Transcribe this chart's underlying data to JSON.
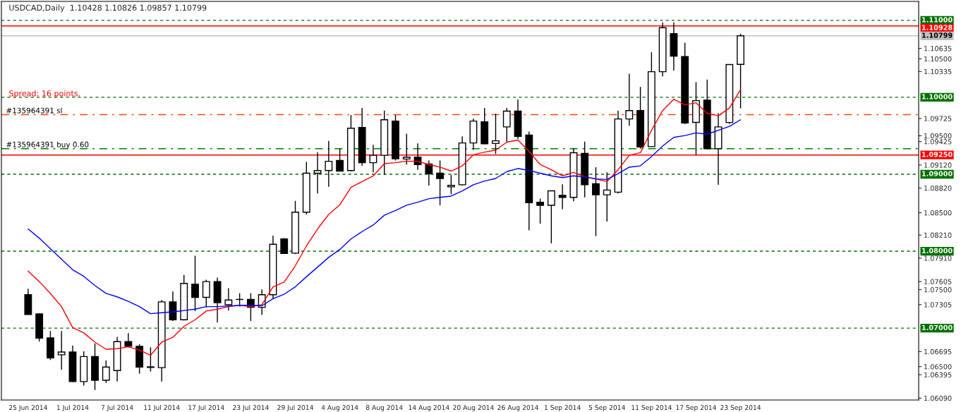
{
  "chart_data": {
    "type": "candlestick",
    "title": "USDCAD,Daily  1.10428 1.10826 1.09857 1.10799",
    "annotations": [
      "Spread: 16 points."
    ],
    "categories": [
      "25 Jun 2014",
      null,
      null,
      null,
      "1 Jul 2014",
      null,
      null,
      null,
      "7 Jul 2014",
      null,
      null,
      null,
      "11 Jul 2014",
      null,
      null,
      null,
      "17 Jul 2014",
      null,
      null,
      null,
      "23 Jul 2014",
      null,
      null,
      null,
      "29 Jul 2014",
      null,
      null,
      null,
      "4 Aug 2014",
      null,
      null,
      null,
      "8 Aug 2014",
      null,
      null,
      null,
      "14 Aug 2014",
      null,
      null,
      null,
      "20 Aug 2014",
      null,
      null,
      null,
      "26 Aug 2014",
      null,
      null,
      null,
      "1 Sep 2014",
      null,
      null,
      null,
      "5 Sep 2014",
      null,
      null,
      null,
      "11 Sep 2014",
      null,
      null,
      null,
      "17 Sep 2014",
      null,
      null,
      null,
      "23 Sep 2014"
    ],
    "ohlc": [
      [
        1.07434,
        1.07513,
        1.07178,
        1.07178
      ],
      [
        1.07184,
        1.07194,
        1.06825,
        1.06869
      ],
      [
        1.06873,
        1.06962,
        1.06586,
        1.06614
      ],
      [
        1.06654,
        1.06962,
        1.0646,
        1.06689
      ],
      [
        1.06689,
        1.06774,
        1.06299,
        1.06306
      ],
      [
        1.06306,
        1.06699,
        1.06255,
        1.06631
      ],
      [
        1.06631,
        1.06801,
        1.06196,
        1.06323
      ],
      [
        1.06323,
        1.06579,
        1.06289,
        1.06494
      ],
      [
        1.06449,
        1.06887,
        1.06306,
        1.06825
      ],
      [
        1.06825,
        1.06935,
        1.0675,
        1.06764
      ],
      [
        1.06764,
        1.06791,
        1.06408,
        1.06494
      ],
      [
        1.06497,
        1.0675,
        1.06436,
        1.0649
      ],
      [
        1.06487,
        1.07366,
        1.06306,
        1.07342
      ],
      [
        1.07342,
        1.07475,
        1.07092,
        1.07109
      ],
      [
        1.07109,
        1.07691,
        1.07099,
        1.07581
      ],
      [
        1.07571,
        1.0794,
        1.07222,
        1.074
      ],
      [
        1.074,
        1.07629,
        1.0727,
        1.07605
      ],
      [
        1.07605,
        1.07656,
        1.07075,
        1.07331
      ],
      [
        1.07304,
        1.07519,
        1.07229,
        1.07366
      ],
      [
        1.07373,
        1.07454,
        1.0728,
        1.07373
      ],
      [
        1.07373,
        1.07454,
        1.07092,
        1.0727
      ],
      [
        1.0727,
        1.07502,
        1.07174,
        1.07434
      ],
      [
        1.07434,
        1.08203,
        1.07383,
        1.0809
      ],
      [
        1.08159,
        1.08169,
        1.07964,
        1.07971
      ],
      [
        1.07974,
        1.08654,
        1.07964,
        1.08507
      ],
      [
        1.08507,
        1.09161,
        1.08477,
        1.09014
      ],
      [
        1.09014,
        1.09287,
        1.0875,
        1.09048
      ],
      [
        1.09048,
        1.09434,
        1.08836,
        1.09168
      ],
      [
        1.09178,
        1.09332,
        1.09041,
        1.09041
      ],
      [
        1.09048,
        1.09769,
        1.09041,
        1.09598
      ],
      [
        1.09608,
        1.09861,
        1.09109,
        1.0915
      ],
      [
        1.0915,
        1.09383,
        1.09024,
        1.09246
      ],
      [
        1.09246,
        1.09827,
        1.08992,
        1.09708
      ],
      [
        1.09691,
        1.09769,
        1.09178,
        1.09202
      ],
      [
        1.09198,
        1.09526,
        1.09126,
        1.09222
      ],
      [
        1.09222,
        1.094,
        1.09058,
        1.09126
      ],
      [
        1.09133,
        1.09178,
        1.08853,
        1.09007
      ],
      [
        1.09014,
        1.09178,
        1.08597,
        1.08945
      ],
      [
        1.08836,
        1.0899,
        1.0874,
        1.08856
      ],
      [
        1.08863,
        1.09492,
        1.08853,
        1.09407
      ],
      [
        1.09407,
        1.09725,
        1.09315,
        1.09691
      ],
      [
        1.0968,
        1.09861,
        1.09389,
        1.09396
      ],
      [
        1.094,
        1.09786,
        1.09263,
        1.09434
      ],
      [
        1.09615,
        1.09861,
        1.09417,
        1.0982
      ],
      [
        1.0982,
        1.09971,
        1.09458,
        1.09492
      ],
      [
        1.09509,
        1.09554,
        1.08272,
        1.08631
      ],
      [
        1.08637,
        1.08682,
        1.08357,
        1.08596
      ],
      [
        1.08596,
        1.08784,
        1.08101,
        1.08784
      ],
      [
        1.08726,
        1.0887,
        1.08545,
        1.08699
      ],
      [
        1.08699,
        1.09342,
        1.08648,
        1.0928
      ],
      [
        1.0927,
        1.09424,
        1.08699,
        1.08863
      ],
      [
        1.08877,
        1.09092,
        1.08196,
        1.08733
      ],
      [
        1.08733,
        1.09024,
        1.08385,
        1.08795
      ],
      [
        1.08767,
        1.09827,
        1.0875,
        1.09718
      ],
      [
        1.09718,
        1.10306,
        1.09629,
        1.09827
      ],
      [
        1.09827,
        1.10135,
        1.09332,
        1.09355
      ],
      [
        1.09359,
        1.10586,
        1.09359,
        1.10333
      ],
      [
        1.10333,
        1.10973,
        1.10272,
        1.10904
      ],
      [
        1.10826,
        1.10973,
        1.10347,
        1.10535
      ],
      [
        1.10528,
        1.10709,
        1.0965,
        1.09667
      ],
      [
        1.09674,
        1.10197,
        1.09253,
        1.09957
      ],
      [
        1.09964,
        1.10231,
        1.09321,
        1.09332
      ],
      [
        1.09332,
        1.09793,
        1.08863,
        1.09615
      ],
      [
        1.09673,
        1.10426,
        1.09656,
        1.10426
      ],
      [
        1.10428,
        1.10826,
        1.09857,
        1.10799
      ]
    ],
    "series": [
      {
        "type": "line",
        "color": "#ff0000",
        "values": [
          1.07742,
          1.07605,
          1.07451,
          1.0728,
          1.07007,
          1.06938,
          1.06818,
          1.06726,
          1.06733,
          1.06757,
          1.06716,
          1.06648,
          1.06818,
          1.0688,
          1.07024,
          1.07109,
          1.07222,
          1.07246,
          1.0728,
          1.07297,
          1.0728,
          1.07304,
          1.07537,
          1.07598,
          1.0781,
          1.08067,
          1.08289,
          1.08477,
          1.08603,
          1.08829,
          1.08904,
          1.08979,
          1.09137,
          1.0915,
          1.09171,
          1.09168,
          1.09126,
          1.09092,
          1.09041,
          1.09109,
          1.09253,
          1.09287,
          1.09314,
          1.09417,
          1.09444,
          1.09297,
          1.09126,
          1.09058,
          1.08979,
          1.09024,
          1.08966,
          1.08939,
          1.08904,
          1.09058,
          1.09246,
          1.0928,
          1.09571,
          1.09827,
          1.09974,
          1.09902,
          1.09929,
          1.09793,
          1.09759,
          1.09861,
          1.10101
        ]
      },
      {
        "type": "line",
        "color": "#0000ff",
        "values": [
          1.08289,
          1.08169,
          1.08032,
          1.07895,
          1.07759,
          1.07673,
          1.07554,
          1.07451,
          1.07407,
          1.07348,
          1.0728,
          1.07188,
          1.07201,
          1.07212,
          1.07229,
          1.07246,
          1.0728,
          1.0728,
          1.07287,
          1.07297,
          1.07297,
          1.0729,
          1.07383,
          1.07441,
          1.07537,
          1.07667,
          1.07793,
          1.07919,
          1.08022,
          1.08159,
          1.08255,
          1.0834,
          1.08467,
          1.08528,
          1.08597,
          1.08637,
          1.08682,
          1.08699,
          1.08716,
          1.08784,
          1.08863,
          1.08911,
          1.08945,
          1.09034,
          1.09075,
          1.09048,
          1.09014,
          1.08979,
          1.08956,
          1.08979,
          1.08966,
          1.08939,
          1.08932,
          1.09007,
          1.09092,
          1.09109,
          1.09229,
          1.09366,
          1.09479,
          1.09503,
          1.09537,
          1.0952,
          1.09571,
          1.09622,
          1.09708
        ]
      }
    ],
    "ylim": [
      1.06066,
      1.11246
    ],
    "yticks": [
      {
        "value": 1.10635,
        "label": "1.10635"
      },
      {
        "value": 1.105,
        "label": "1.10500"
      },
      {
        "value": 1.10335,
        "label": "1.10335"
      },
      {
        "value": 1.09725,
        "label": "1.09725"
      },
      {
        "value": 1.095,
        "label": "1.09500"
      },
      {
        "value": 1.09425,
        "label": "1.09425"
      },
      {
        "value": 1.0912,
        "label": "1.09120"
      },
      {
        "value": 1.0882,
        "label": "1.08820"
      },
      {
        "value": 1.085,
        "label": "1.08500"
      },
      {
        "value": 1.0821,
        "label": "1.08210"
      },
      {
        "value": 1.0791,
        "label": "1.07910"
      },
      {
        "value": 1.07605,
        "label": "1.07605"
      },
      {
        "value": 1.075,
        "label": "1.07500"
      },
      {
        "value": 1.07305,
        "label": "1.07305"
      },
      {
        "value": 1.06695,
        "label": "1.06695"
      },
      {
        "value": 1.065,
        "label": "1.06500"
      },
      {
        "value": 1.06395,
        "label": "1.06395"
      },
      {
        "value": 1.0609,
        "label": "1.06090"
      }
    ],
    "ref_lines": [
      {
        "axis": "y",
        "value": 1.11,
        "label": "1.11000",
        "color": "#007000",
        "line_style": "dotted"
      },
      {
        "axis": "y",
        "value": 1.10928,
        "label": "1.10928",
        "color": "#ff0000",
        "line_style": "solid"
      },
      {
        "axis": "y",
        "value": 1.10799,
        "label": "1.10799",
        "color": "#c0c0c0",
        "line_style": "solid"
      },
      {
        "axis": "y",
        "value": 1.1,
        "label": "1.10000",
        "color": "#007000",
        "line_style": "dotted"
      },
      {
        "axis": "y",
        "value": 1.09774,
        "label": "#135964391 sl",
        "color": "#ff4500",
        "line_style": "dashed"
      },
      {
        "axis": "y",
        "value": 1.09332,
        "label": "#135964391 buy 0.60",
        "color": "#008000",
        "line_style": "dashed"
      },
      {
        "axis": "y",
        "value": 1.0925,
        "label": "1.09250",
        "color": "#ff0000",
        "line_style": "solid"
      },
      {
        "axis": "y",
        "value": 1.09,
        "label": "1.09000",
        "color": "#007000",
        "line_style": "dotted"
      },
      {
        "axis": "y",
        "value": 1.08,
        "label": "1.08000",
        "color": "#007000",
        "line_style": "dotted"
      },
      {
        "axis": "y",
        "value": 1.07,
        "label": "1.07000",
        "color": "#007000",
        "line_style": "dotted"
      }
    ],
    "grid": false
  }
}
